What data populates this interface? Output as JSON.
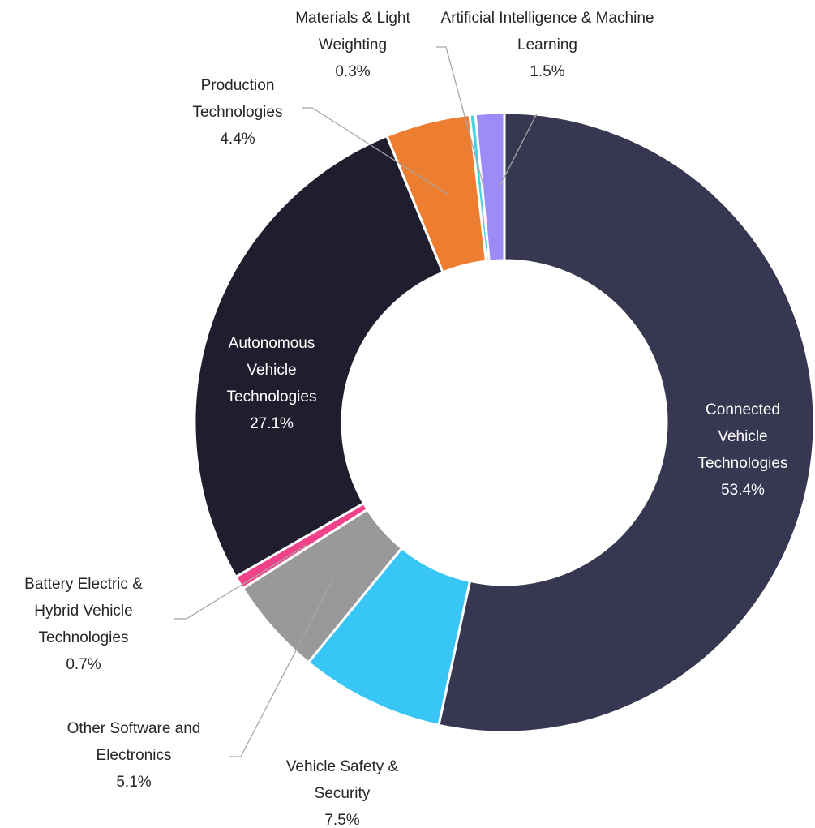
{
  "chart_data": {
    "type": "donut",
    "categories": [
      "Connected Vehicle Technologies",
      "Vehicle Safety & Security",
      "Other Software and Electronics",
      "Battery Electric & Hybrid Vehicle Technologies",
      "Autonomous Vehicle Technologies",
      "Production Technologies",
      "Materials & Light Weighting",
      "Artificial Intelligence & Machine Learning"
    ],
    "values": [
      53.4,
      7.5,
      5.1,
      0.7,
      27.1,
      4.4,
      0.3,
      1.5
    ],
    "value_labels": [
      "53.4%",
      "7.5%",
      "5.1%",
      "0.7%",
      "27.1%",
      "4.4%",
      "0.3%",
      "1.5%"
    ],
    "colors": [
      "#373751",
      "#38c6f7",
      "#999999",
      "#f0428a",
      "#1f1e2e",
      "#ed7d31",
      "#4dd0e1",
      "#9b8cf8"
    ]
  }
}
